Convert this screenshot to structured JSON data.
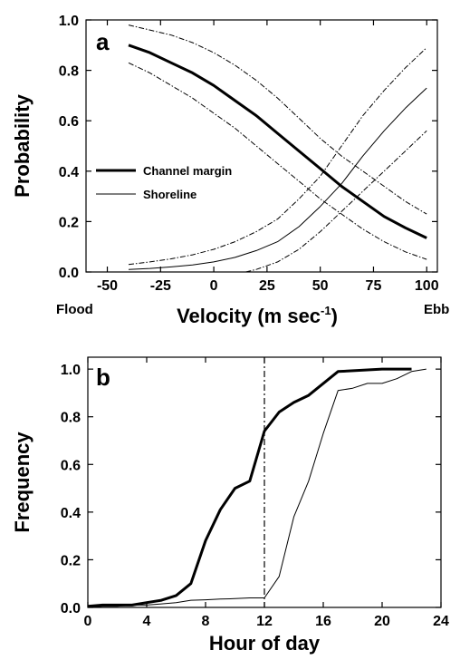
{
  "chart_data": [
    {
      "type": "line",
      "panel_label": "a",
      "ylabel": "Probability",
      "xlabel": "Velocity (m sec",
      "xlabel_sup": "-1",
      "xlabel_close": ")",
      "x_left_label": "Flood",
      "x_right_label": "Ebb",
      "xlim": [
        -60,
        105
      ],
      "ylim": [
        0,
        1.0
      ],
      "xticks": [
        -50,
        -25,
        0,
        25,
        50,
        75,
        100
      ],
      "yticks": [
        0.0,
        0.2,
        0.4,
        0.6,
        0.8,
        1.0
      ],
      "legend": [
        {
          "name": "Channel margin",
          "style": "thick"
        },
        {
          "name": "Shoreline",
          "style": "thin"
        }
      ],
      "series": [
        {
          "name": "Channel margin",
          "style": "thick",
          "x": [
            -40,
            -30,
            -20,
            -10,
            0,
            10,
            20,
            30,
            40,
            50,
            60,
            70,
            80,
            90,
            100
          ],
          "y": [
            0.9,
            0.87,
            0.83,
            0.79,
            0.74,
            0.68,
            0.62,
            0.55,
            0.48,
            0.41,
            0.34,
            0.28,
            0.22,
            0.175,
            0.135
          ]
        },
        {
          "name": "Channel margin upper CI",
          "style": "dashdot",
          "x": [
            -40,
            -30,
            -20,
            -10,
            0,
            10,
            20,
            30,
            40,
            50,
            60,
            70,
            80,
            90,
            100
          ],
          "y": [
            0.98,
            0.96,
            0.94,
            0.91,
            0.87,
            0.82,
            0.76,
            0.69,
            0.61,
            0.53,
            0.46,
            0.4,
            0.34,
            0.28,
            0.23
          ]
        },
        {
          "name": "Channel margin lower CI",
          "style": "dashdot",
          "x": [
            -40,
            -30,
            -20,
            -10,
            0,
            10,
            20,
            30,
            40,
            50,
            60,
            70,
            80,
            90,
            100
          ],
          "y": [
            0.83,
            0.79,
            0.74,
            0.69,
            0.63,
            0.57,
            0.5,
            0.43,
            0.36,
            0.29,
            0.23,
            0.17,
            0.12,
            0.08,
            0.05
          ]
        },
        {
          "name": "Shoreline",
          "style": "thin",
          "x": [
            -40,
            -30,
            -20,
            -10,
            0,
            10,
            20,
            30,
            40,
            50,
            60,
            70,
            80,
            90,
            100
          ],
          "y": [
            0.01,
            0.014,
            0.02,
            0.028,
            0.04,
            0.058,
            0.085,
            0.12,
            0.18,
            0.26,
            0.35,
            0.46,
            0.56,
            0.65,
            0.73
          ]
        },
        {
          "name": "Shoreline upper CI",
          "style": "dashdot",
          "x": [
            -40,
            -30,
            -20,
            -10,
            0,
            10,
            20,
            30,
            40,
            50,
            60,
            70,
            80,
            90,
            100
          ],
          "y": [
            0.03,
            0.04,
            0.052,
            0.068,
            0.09,
            0.12,
            0.16,
            0.21,
            0.29,
            0.38,
            0.5,
            0.62,
            0.72,
            0.81,
            0.89
          ]
        },
        {
          "name": "Shoreline lower CI",
          "style": "dashdot",
          "x": [
            15,
            20,
            30,
            40,
            50,
            60,
            70,
            80,
            90,
            100
          ],
          "y": [
            0.0,
            0.01,
            0.04,
            0.09,
            0.16,
            0.24,
            0.32,
            0.4,
            0.48,
            0.56
          ]
        }
      ]
    },
    {
      "type": "line",
      "panel_label": "b",
      "ylabel": "Frequency",
      "xlabel": "Hour of day",
      "xlim": [
        0,
        24
      ],
      "ylim": [
        0,
        1.05
      ],
      "xticks": [
        0,
        4,
        8,
        12,
        16,
        20,
        24
      ],
      "yticks": [
        0.0,
        0.2,
        0.4,
        0.6,
        0.8,
        1.0
      ],
      "vline_x": 12,
      "series": [
        {
          "name": "Channel margin",
          "style": "thick",
          "x": [
            0,
            1,
            2,
            3,
            4,
            5,
            6,
            7,
            8,
            9,
            10,
            11,
            12,
            13,
            14,
            15,
            17,
            20,
            22
          ],
          "y": [
            0.005,
            0.01,
            0.01,
            0.01,
            0.02,
            0.03,
            0.05,
            0.1,
            0.28,
            0.41,
            0.5,
            0.53,
            0.74,
            0.82,
            0.86,
            0.89,
            0.99,
            1.0,
            1.0
          ]
        },
        {
          "name": "Shoreline",
          "style": "thin",
          "x": [
            0,
            1,
            2,
            3,
            4,
            5,
            6,
            7,
            8,
            9,
            10,
            11,
            12,
            13,
            14,
            15,
            16,
            17,
            18,
            19,
            20,
            21,
            22,
            23
          ],
          "y": [
            0.0,
            0.005,
            0.005,
            0.01,
            0.01,
            0.015,
            0.02,
            0.03,
            0.032,
            0.035,
            0.037,
            0.04,
            0.04,
            0.13,
            0.38,
            0.53,
            0.73,
            0.91,
            0.92,
            0.94,
            0.94,
            0.96,
            0.99,
            1.0
          ]
        }
      ]
    }
  ]
}
